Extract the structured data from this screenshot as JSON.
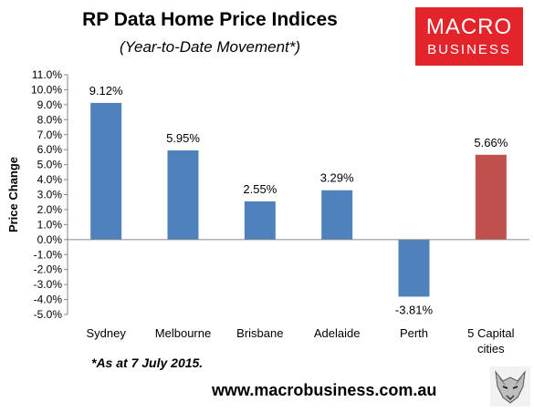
{
  "header": {
    "title": "RP Data Home Price Indices",
    "subtitle": "(Year-to-Date Movement*)"
  },
  "logo": {
    "line1": "MACRO",
    "line2": "BUSINESS",
    "color": "#e3242b"
  },
  "footnote": "*As at 7 July 2015.",
  "website": "www.macrobusiness.com.au",
  "icons": {
    "mascot": "wolf-icon"
  },
  "chart_data": {
    "type": "bar",
    "ylabel": "Price Change",
    "categories": [
      [
        "Sydney"
      ],
      [
        "Melbourne"
      ],
      [
        "Brisbane"
      ],
      [
        "Adelaide"
      ],
      [
        "Perth"
      ],
      [
        "5 Capital",
        "cities"
      ]
    ],
    "values": [
      9.12,
      5.95,
      2.55,
      3.29,
      -3.81,
      5.66
    ],
    "data_labels": [
      "9.12%",
      "5.95%",
      "2.55%",
      "3.29%",
      "-3.81%",
      "5.66%"
    ],
    "colors": [
      "#4f81bd",
      "#4f81bd",
      "#4f81bd",
      "#4f81bd",
      "#4f81bd",
      "#c0504d"
    ],
    "ylim": [
      -5,
      11
    ],
    "yticks": [
      "11.0%",
      "10.0%",
      "9.0%",
      "8.0%",
      "7.0%",
      "6.0%",
      "5.0%",
      "4.0%",
      "3.0%",
      "2.0%",
      "1.0%",
      "0.0%",
      "-1.0%",
      "-2.0%",
      "-3.0%",
      "-4.0%",
      "-5.0%"
    ],
    "ytick_values": [
      11,
      10,
      9,
      8,
      7,
      6,
      5,
      4,
      3,
      2,
      1,
      0,
      -1,
      -2,
      -3,
      -4,
      -5
    ],
    "grid": false,
    "legend": "none"
  }
}
